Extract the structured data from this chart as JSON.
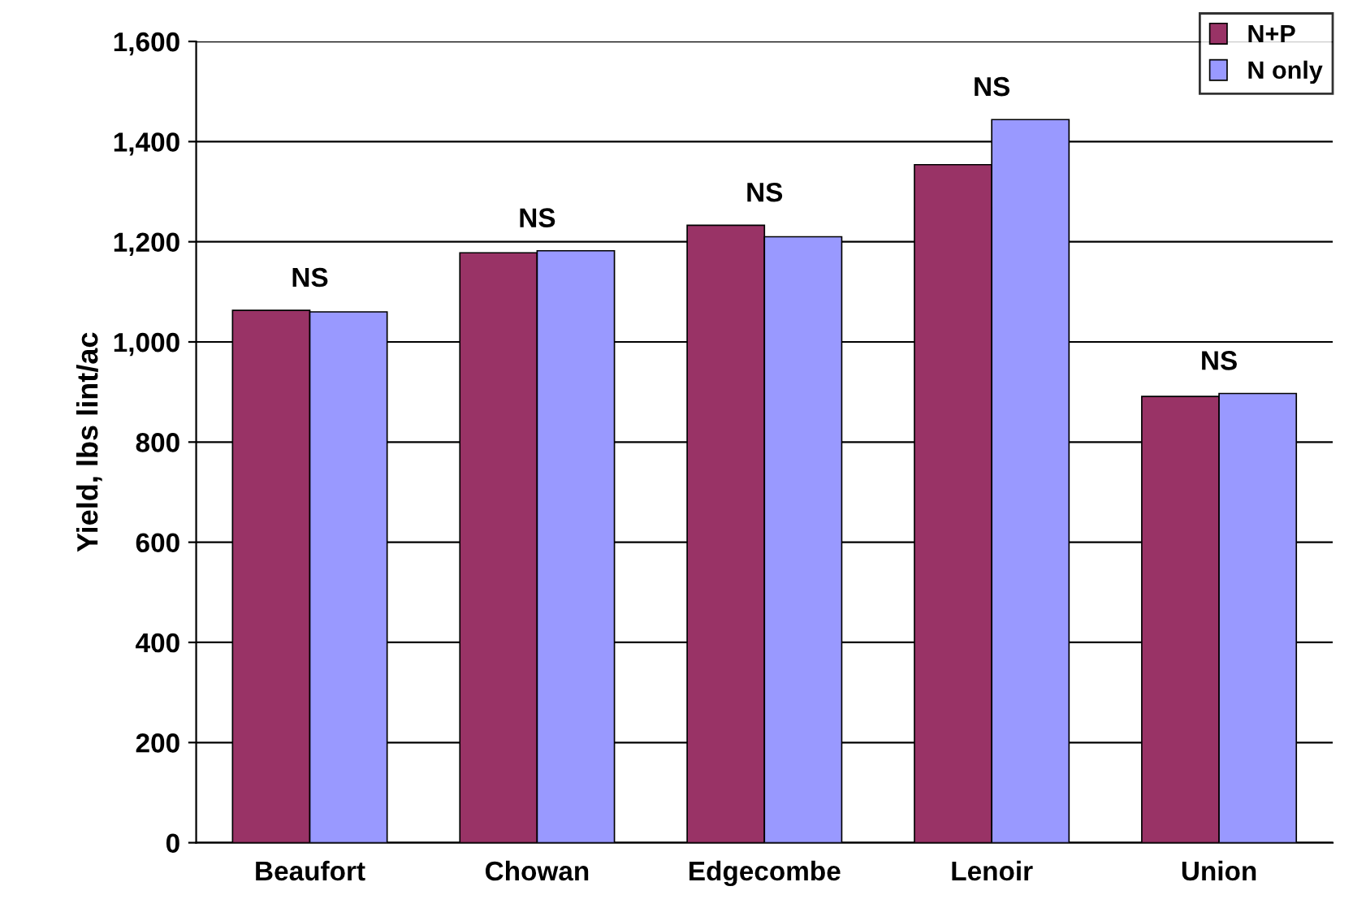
{
  "chart_data": {
    "type": "bar",
    "ylabel": "Yield, lbs lint/ac",
    "categories": [
      "Beaufort",
      "Chowan",
      "Edgecombe",
      "Lenoir",
      "Union"
    ],
    "series": [
      {
        "name": "N+P",
        "color": "#993366",
        "values": [
          1063,
          1178,
          1233,
          1354,
          891
        ]
      },
      {
        "name": "N only",
        "color": "#9999ff",
        "values": [
          1060,
          1182,
          1210,
          1444,
          897
        ]
      }
    ],
    "ylim": [
      0,
      1600
    ],
    "yticks": [
      {
        "value": 0,
        "label": "0"
      },
      {
        "value": 200,
        "label": "200"
      },
      {
        "value": 400,
        "label": "400"
      },
      {
        "value": 600,
        "label": "600"
      },
      {
        "value": 800,
        "label": "800"
      },
      {
        "value": 1000,
        "label": "1,000"
      },
      {
        "value": 1200,
        "label": "1,200"
      },
      {
        "value": 1400,
        "label": "1,400"
      },
      {
        "value": 1600,
        "label": "1,600"
      }
    ],
    "grid": "y",
    "legend": "top right",
    "annotations": [
      "NS",
      "NS",
      "NS",
      "NS",
      "NS"
    ]
  }
}
